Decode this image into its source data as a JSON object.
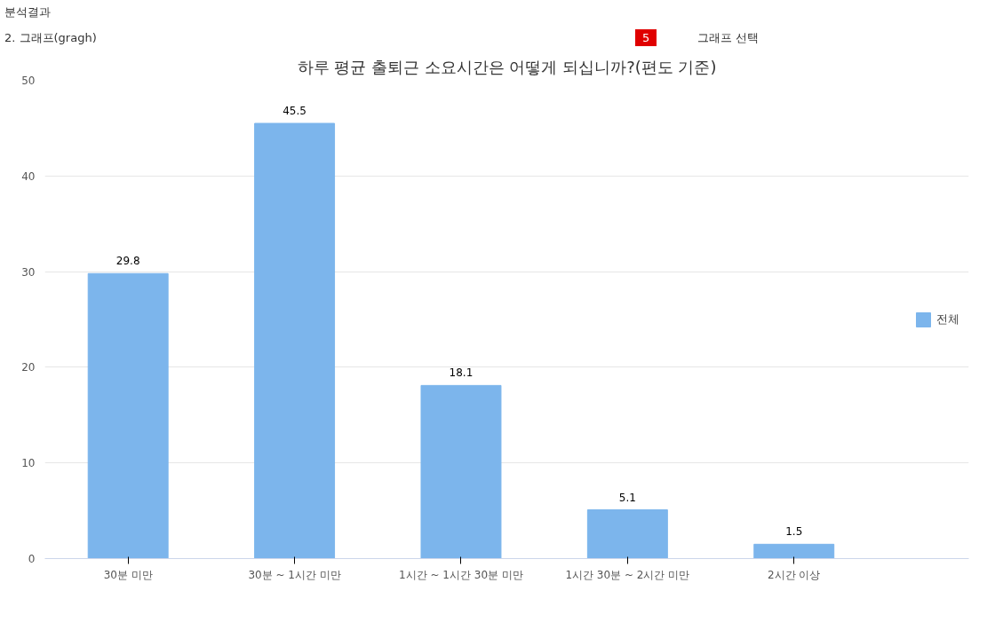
{
  "chart_data": {
    "type": "bar",
    "title": "하루 평균 출퇴근 소요시간은 어떻게 되십니까?(편도 기준)",
    "categories": [
      "30분 미만",
      "30분 ~ 1시간 미만",
      "1시간 ~ 1시간 30분 미만",
      "1시간 30분 ~ 2시간 미만",
      "2시간 이상"
    ],
    "series": [
      {
        "name": "전체",
        "color": "#7cb5ec",
        "values": [
          29.8,
          45.5,
          18.1,
          5.1,
          1.5
        ]
      }
    ],
    "ylim": [
      0,
      50
    ],
    "yticks": [
      0,
      10,
      20,
      30,
      40,
      50
    ],
    "grid": "y",
    "legend": "right",
    "data_labels": true,
    "annotations": [
      "분석결과",
      "2. 그래프(gragh)",
      "5",
      "그래프 선택"
    ]
  }
}
